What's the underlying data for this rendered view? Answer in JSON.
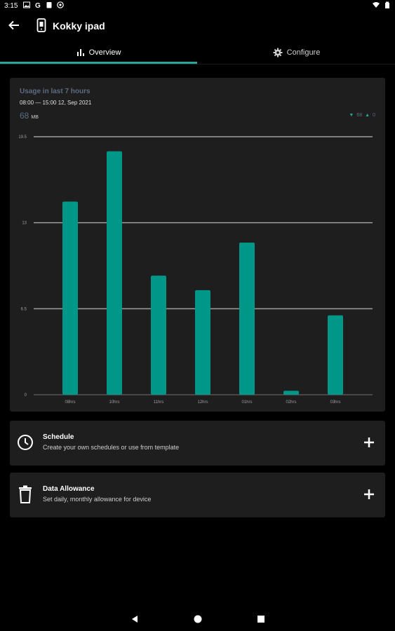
{
  "status_bar": {
    "time": "3:15",
    "left_icons": [
      "image-icon",
      "google-icon",
      "clipboard-icon",
      "settings-badge-icon"
    ],
    "right_icons": [
      "wifi-icon",
      "battery-icon"
    ]
  },
  "app_bar": {
    "title": "Kokky ipad",
    "device_icon": "tablet-icon"
  },
  "tabs": [
    {
      "label": "Overview",
      "icon": "bar-chart-icon",
      "active": true
    },
    {
      "label": "Configure",
      "icon": "gear-icon",
      "active": false
    }
  ],
  "usage": {
    "title": "Usage in last 7 hours",
    "range": "08:00 — 15:00 12, Sep 2021",
    "total_value": "68",
    "total_unit": "MB",
    "legend_down": "68",
    "legend_up": "0"
  },
  "chart_data": {
    "type": "bar",
    "categories": [
      "08hrs",
      "10hrs",
      "11hrs",
      "12hrs",
      "01hrs",
      "02hrs",
      "03hrs"
    ],
    "values": [
      14.6,
      18.4,
      9.0,
      7.9,
      11.5,
      0.3,
      6.0
    ],
    "yticks": [
      "0",
      "6.5",
      "13",
      "19.5"
    ],
    "ylim": [
      0,
      19.5
    ],
    "bar_color": "#009688",
    "grid": true
  },
  "actions": [
    {
      "title": "Schedule",
      "subtitle": "Create your own schedules or use from template",
      "icon": "clock-icon"
    },
    {
      "title": "Data Allowance",
      "subtitle": "Set daily, monthly allowance for device",
      "icon": "trash-icon"
    }
  ],
  "colors": {
    "accent": "#26a69a",
    "bar": "#009688",
    "card": "#1e1e1e",
    "background": "#000000",
    "muted_title": "#5b6b82"
  }
}
